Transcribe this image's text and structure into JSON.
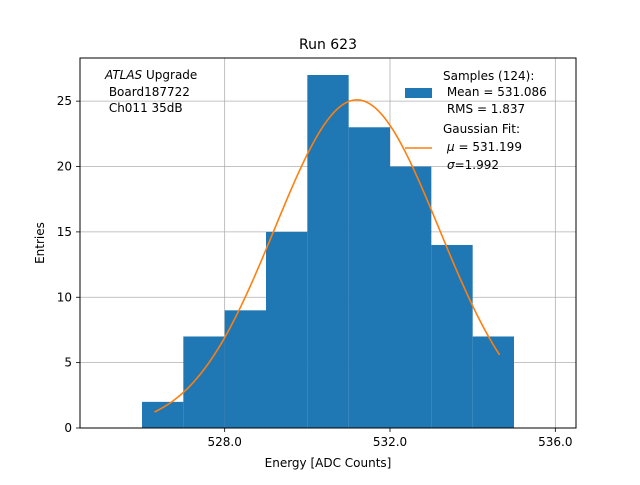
{
  "chart_data": {
    "type": "histogram",
    "title": "Run 623",
    "xlabel": "Energy [ADC Counts]",
    "ylabel": "Entries",
    "xlim": [
      524.5,
      536.5
    ],
    "ylim": [
      0,
      28.3
    ],
    "xticks": [
      528.0,
      532.0,
      536.0
    ],
    "xtick_labels": [
      "528.0",
      "532.0",
      "536.0"
    ],
    "yticks": [
      0,
      5,
      10,
      15,
      20,
      25
    ],
    "ytick_labels": [
      "0",
      "5",
      "10",
      "15",
      "20",
      "25"
    ],
    "grid": true,
    "bin_edges": [
      526,
      527,
      528,
      529,
      530,
      531,
      532,
      533,
      534,
      535
    ],
    "counts": [
      2,
      7,
      9,
      15,
      27,
      23,
      20,
      14,
      7
    ],
    "bar_color": "#1f77b4",
    "fit": {
      "mu": 531.199,
      "sigma": 1.992,
      "amplitude": 25.1,
      "x_range": [
        526.3,
        534.65
      ],
      "color": "#ff7f0e"
    },
    "legend": {
      "location": "upper-right",
      "samples_lines": [
        "Samples (124):",
        " Mean = 531.086",
        " RMS = 1.837"
      ],
      "fit_lines": [
        "Gaussian Fit:",
        "μ = 531.199",
        "σ=1.992"
      ],
      "fit_symbols": [
        "μ",
        "σ"
      ],
      "fit_values": [
        " = 531.199",
        "=1.992"
      ]
    },
    "annotation": {
      "italic": "ATLAS",
      "rest": " Upgrade",
      "lines": [
        " Board187722",
        " Ch011 35dB"
      ]
    }
  }
}
